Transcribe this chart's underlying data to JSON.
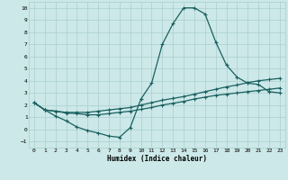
{
  "xlabel": "Humidex (Indice chaleur)",
  "xlim": [
    -0.5,
    23.5
  ],
  "ylim": [
    -1.5,
    10.5
  ],
  "xticks": [
    0,
    1,
    2,
    3,
    4,
    5,
    6,
    7,
    8,
    9,
    10,
    11,
    12,
    13,
    14,
    15,
    16,
    17,
    18,
    19,
    20,
    21,
    22,
    23
  ],
  "yticks": [
    -1,
    0,
    1,
    2,
    3,
    4,
    5,
    6,
    7,
    8,
    9,
    10
  ],
  "bg_color": "#cce8e8",
  "grid_color": "#aacfcf",
  "line_color": "#1a6060",
  "line1_x": [
    0,
    1,
    2,
    3,
    4,
    5,
    6,
    7,
    8,
    9,
    10,
    11,
    12,
    13,
    14,
    15,
    16,
    17,
    18,
    19,
    20,
    21,
    22,
    23
  ],
  "line1_y": [
    2.2,
    1.6,
    1.1,
    0.7,
    0.2,
    -0.1,
    -0.3,
    -0.55,
    -0.65,
    0.15,
    2.5,
    3.8,
    7.0,
    8.7,
    10.0,
    10.0,
    9.5,
    7.2,
    5.3,
    4.3,
    3.8,
    3.7,
    3.1,
    3.0
  ],
  "line2_x": [
    0,
    1,
    2,
    3,
    4,
    5,
    6,
    7,
    8,
    9,
    10,
    11,
    12,
    13,
    14,
    15,
    16,
    17,
    18,
    19,
    20,
    21,
    22,
    23
  ],
  "line2_y": [
    2.2,
    1.6,
    1.5,
    1.4,
    1.4,
    1.4,
    1.5,
    1.6,
    1.7,
    1.8,
    2.0,
    2.2,
    2.4,
    2.55,
    2.7,
    2.9,
    3.1,
    3.3,
    3.5,
    3.65,
    3.85,
    4.0,
    4.1,
    4.2
  ],
  "line3_x": [
    0,
    1,
    2,
    3,
    4,
    5,
    6,
    7,
    8,
    9,
    10,
    11,
    12,
    13,
    14,
    15,
    16,
    17,
    18,
    19,
    20,
    21,
    22,
    23
  ],
  "line3_y": [
    2.2,
    1.6,
    1.5,
    1.35,
    1.3,
    1.2,
    1.2,
    1.3,
    1.4,
    1.5,
    1.65,
    1.8,
    2.0,
    2.15,
    2.3,
    2.5,
    2.65,
    2.8,
    2.9,
    3.0,
    3.1,
    3.2,
    3.3,
    3.4
  ],
  "marker": "+",
  "markersize": 3,
  "linewidth": 0.9
}
